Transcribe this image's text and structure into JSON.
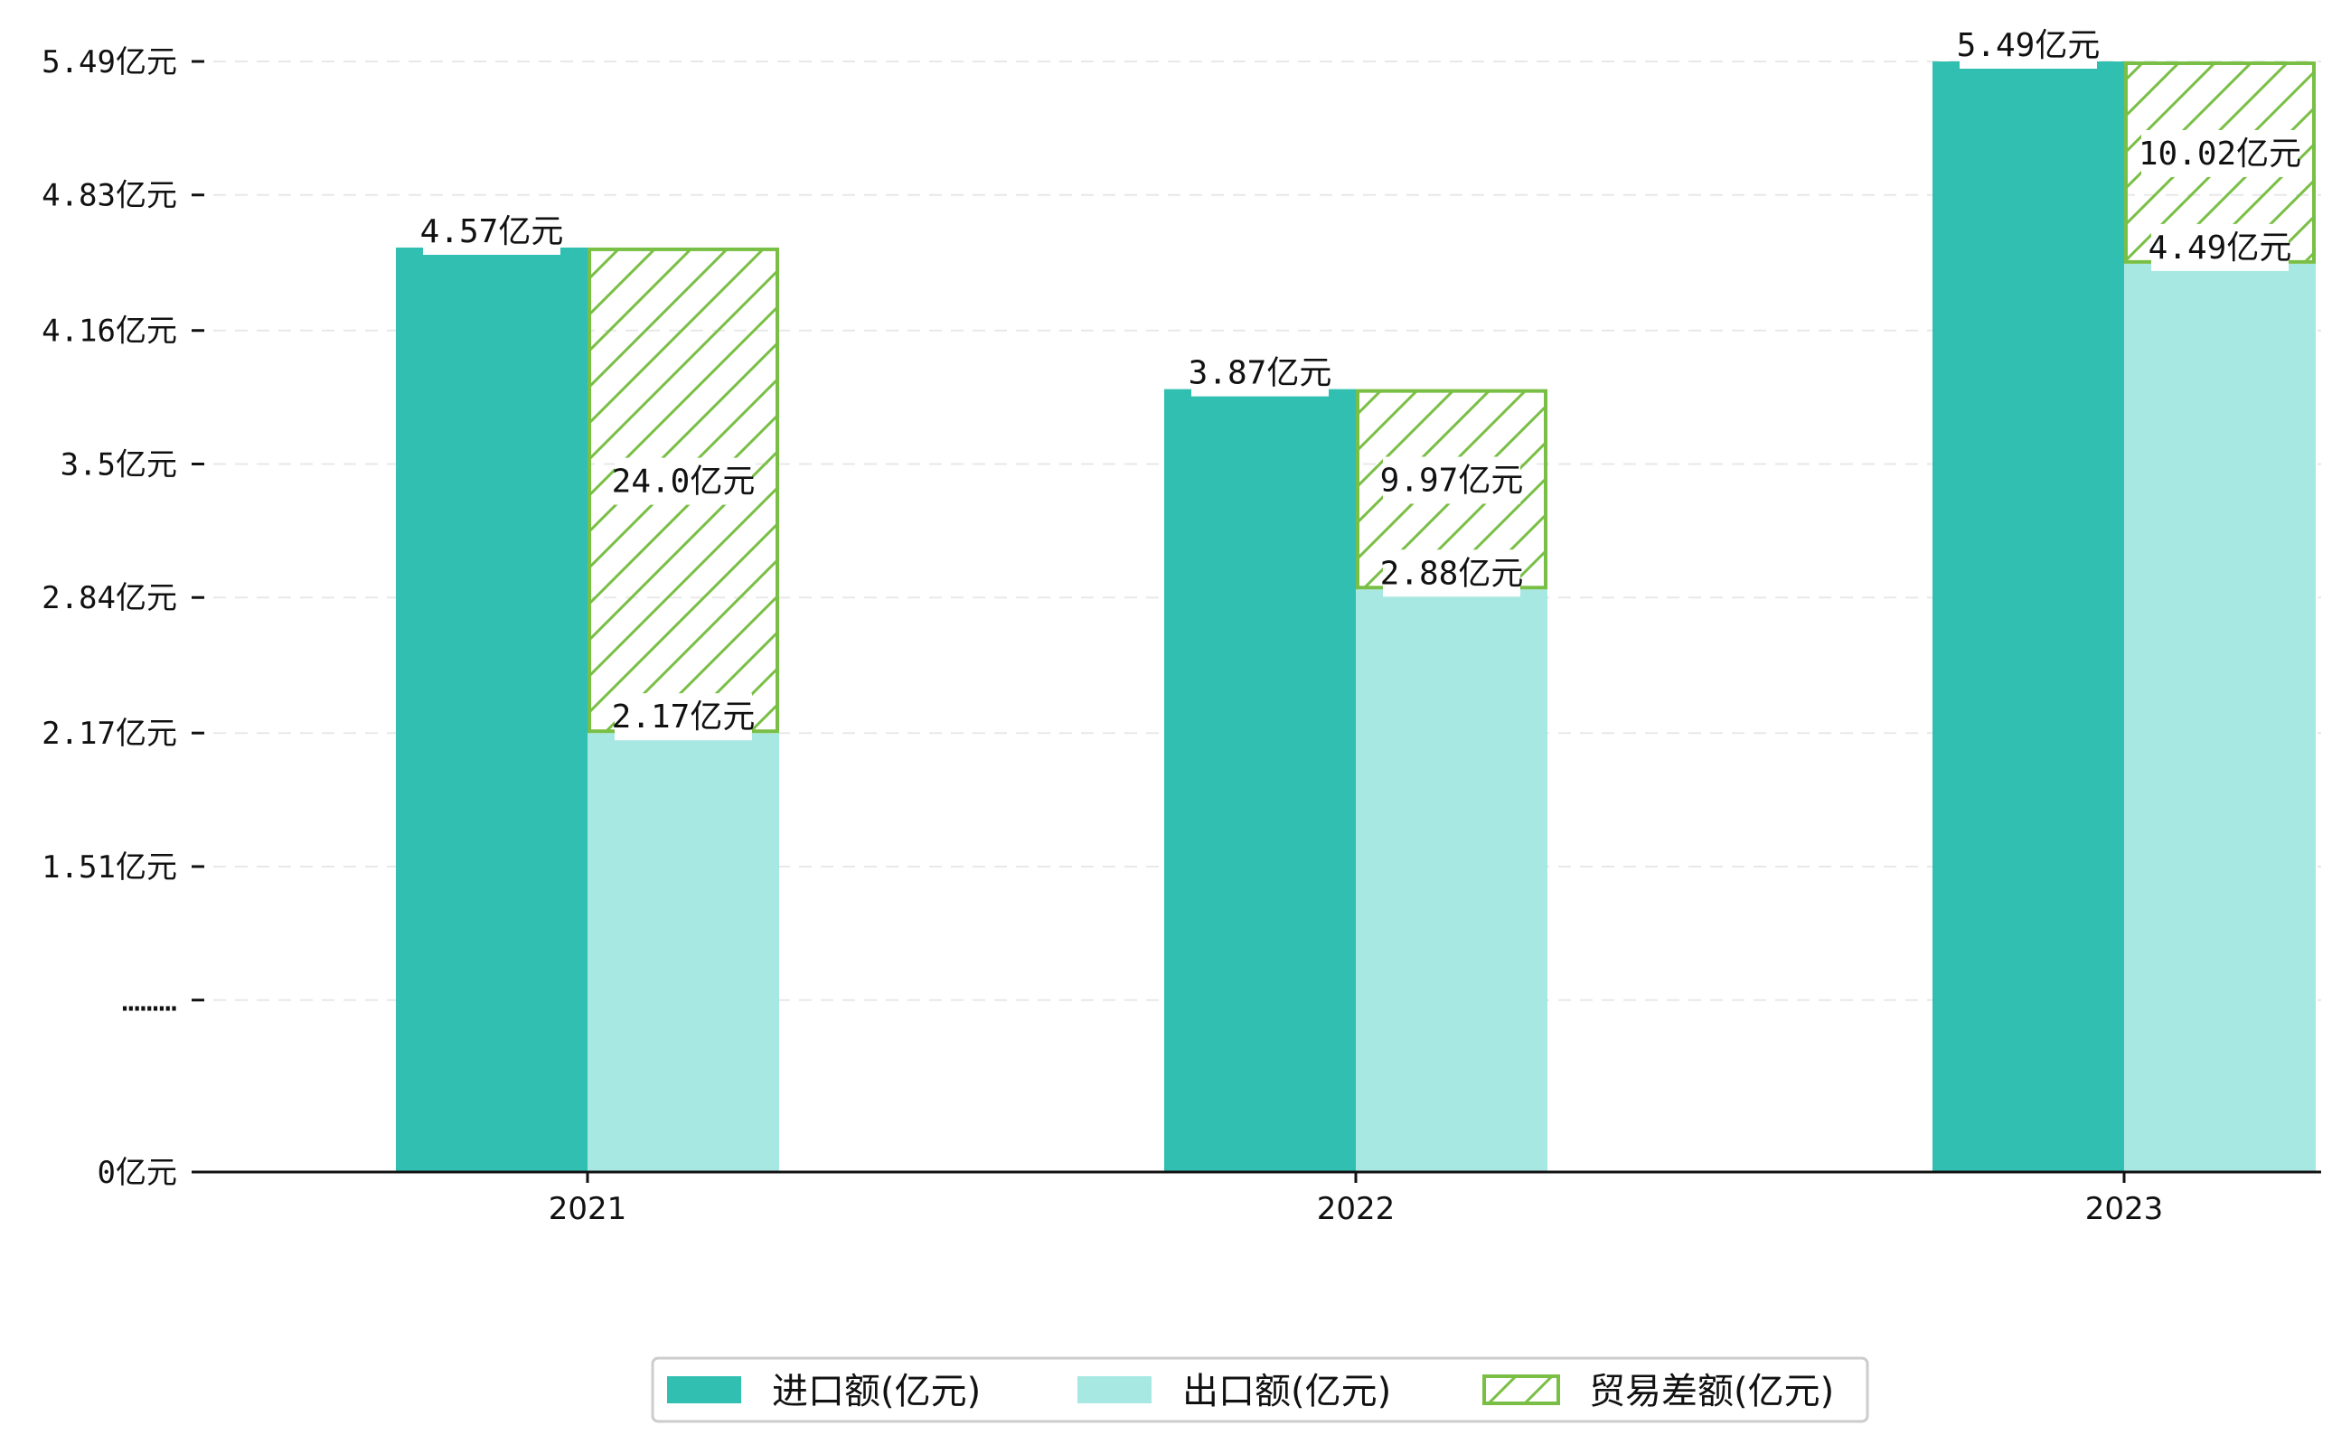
{
  "chart_data": {
    "type": "bar",
    "title": "",
    "xlabel": "",
    "ylabel": "",
    "categories": [
      "2021",
      "2022",
      "2023"
    ],
    "series": [
      {
        "name": "进口额(亿元)",
        "values": [
          4.57,
          3.87,
          5.49
        ],
        "labels": [
          "4.57亿元",
          "3.87亿元",
          "5.49亿元"
        ],
        "color": "#30bfb1"
      },
      {
        "name": "出口额(亿元)",
        "values": [
          2.17,
          2.88,
          4.49
        ],
        "labels": [
          "2.17亿元",
          "2.88亿元",
          "4.49亿元"
        ],
        "color": "#a8e8e2"
      },
      {
        "name": "贸易差额(亿元)",
        "values": [
          24.0,
          9.97,
          10.02
        ],
        "labels": [
          "24.0亿元",
          "9.97亿元",
          "10.02亿元"
        ],
        "color": "#7abf45",
        "pattern": "hatch",
        "stacked_on": "出口额(亿元)"
      }
    ],
    "yticks": [
      {
        "value": 5.49,
        "label": "5.49亿元"
      },
      {
        "value": 4.83,
        "label": "4.83亿元"
      },
      {
        "value": 4.16,
        "label": "4.16亿元"
      },
      {
        "value": 3.5,
        "label": "3.5亿元"
      },
      {
        "value": 2.84,
        "label": "2.84亿元"
      },
      {
        "value": 2.17,
        "label": "2.17亿元"
      },
      {
        "value": 1.51,
        "label": "1.51亿元"
      },
      {
        "value": 0.85,
        "label": "………"
      },
      {
        "value": 0,
        "label": "0亿元"
      }
    ],
    "ylim": [
      0,
      5.49
    ],
    "grid": true,
    "legend_position": "bottom"
  }
}
